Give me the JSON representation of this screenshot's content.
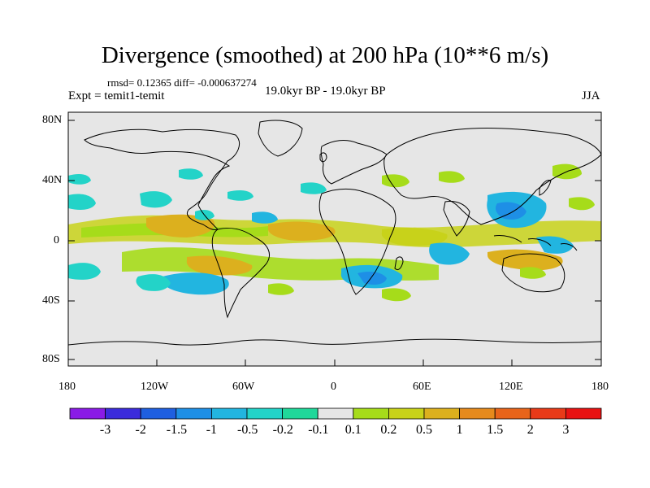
{
  "title": "Divergence (smoothed) at 200 hPa (10**6 m/s)",
  "stats": "rmsd= 0.12365 diff= -0.000637274",
  "experiment": "Expt = temit1-temit",
  "period": "19.0kyr BP - 19.0kyr BP",
  "season": "JJA",
  "lat_labels": [
    "80N",
    "40N",
    "0",
    "40S",
    "80S"
  ],
  "lon_labels": [
    "180",
    "120W",
    "60W",
    "0",
    "60E",
    "120E",
    "180"
  ],
  "colorbar": {
    "labels": [
      "-3",
      "-2",
      "-1.5",
      "-1",
      "-0.5",
      "-0.2",
      "-0.1",
      "0.1",
      "0.2",
      "0.5",
      "1",
      "1.5",
      "2",
      "3"
    ],
    "colors": [
      "#8a1be6",
      "#3b2bdb",
      "#1f5fe0",
      "#1e8fe6",
      "#22b5e0",
      "#23d3c8",
      "#20d89a",
      "#e6e6e6",
      "#a6dc1a",
      "#c8d21a",
      "#dcb01e",
      "#e68a1c",
      "#e8641a",
      "#e83a18",
      "#e81212"
    ]
  },
  "colors": {
    "background_field": "#e6e6e6",
    "coast": "#000000"
  }
}
